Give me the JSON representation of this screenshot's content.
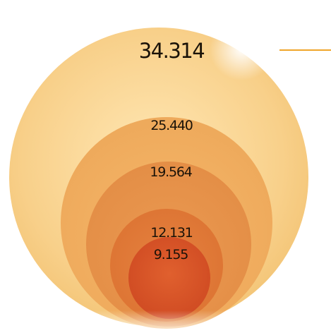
{
  "chart_data": {
    "type": "nested-bubble",
    "values": [
      34.314,
      25.44,
      19.564,
      12.131,
      9.155
    ],
    "labels": [
      "34.314",
      "25.440",
      "19.564",
      "12.131",
      "9.155"
    ],
    "colors": {
      "outer": "#f6c978",
      "ring2": "#f1ad60",
      "ring3": "#e8924a",
      "ring4": "#e07a3a",
      "inner": "#d8522a",
      "accent_line": "#f0a52a",
      "gray_line": "#c8c8c8"
    }
  }
}
